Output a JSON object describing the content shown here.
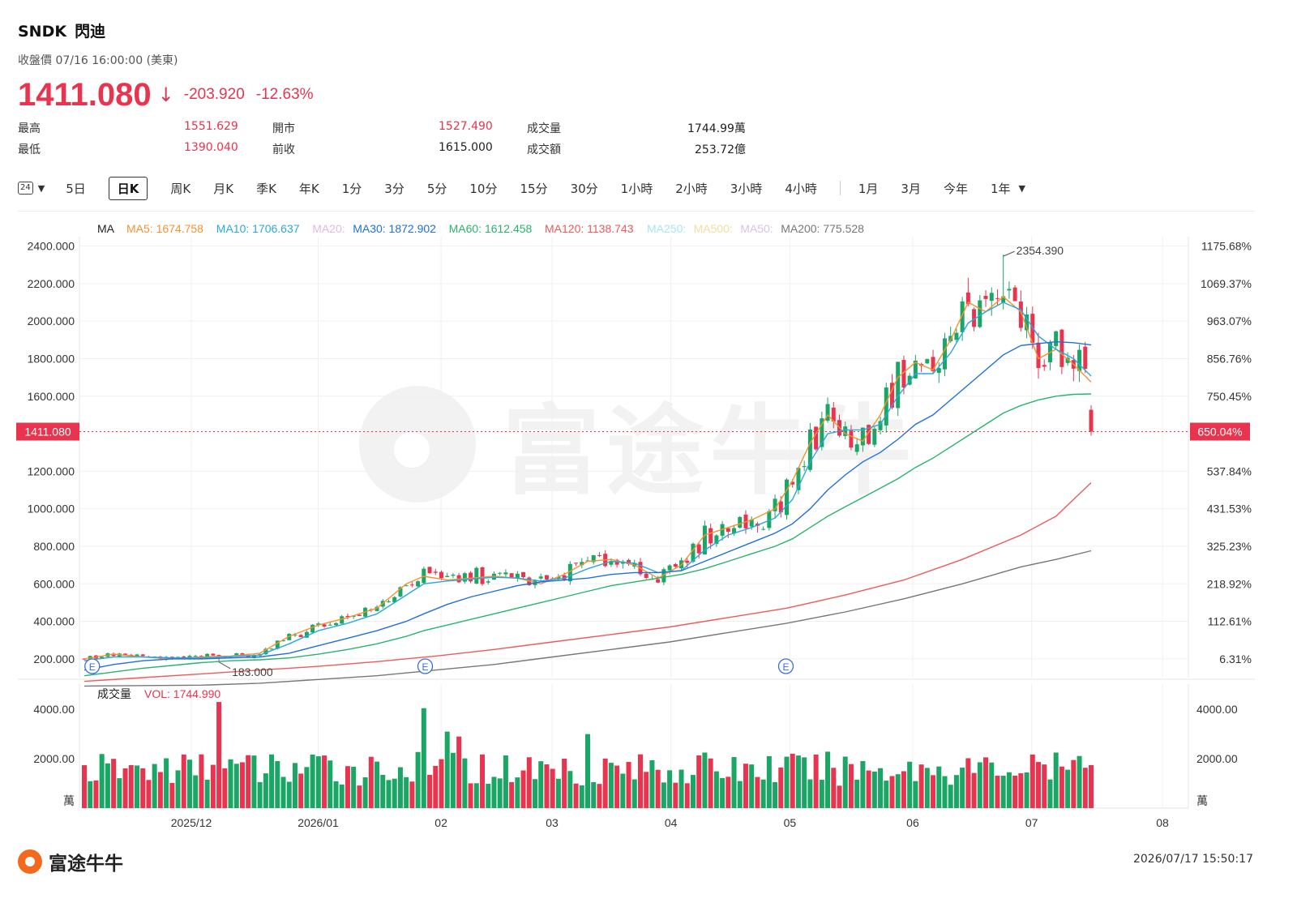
{
  "header": {
    "ticker": "SNDK",
    "name": "閃迪",
    "close_label": "收盤價 07/16 16:00:00 (美東)",
    "last_price": "1411.080",
    "change": "-203.920",
    "change_pct": "-12.63%"
  },
  "stats": {
    "high_label": "最高",
    "high": "1551.629",
    "low_label": "最低",
    "low": "1390.040",
    "open_label": "開市",
    "open": "1527.490",
    "prev_label": "前收",
    "prev": "1615.000",
    "vol_label": "成交量",
    "vol": "1744.99萬",
    "amt_label": "成交額",
    "amt": "253.72億"
  },
  "tabs": {
    "cal_icon": "24",
    "items": [
      "5日",
      "日K",
      "周K",
      "月K",
      "季K",
      "年K",
      "1分",
      "3分",
      "5分",
      "10分",
      "15分",
      "30分",
      "1小時",
      "2小時",
      "3小時",
      "4小時"
    ],
    "active": "日K",
    "ranges": [
      "1月",
      "3月",
      "今年",
      "1年"
    ]
  },
  "ma_legend": {
    "label": "MA",
    "items": [
      {
        "text": "MA5: 1674.758",
        "color": "#f5922f",
        "faded": false
      },
      {
        "text": "MA10: 1706.637",
        "color": "#2ba8dd",
        "faded": false
      },
      {
        "text": "MA20:",
        "color": "#e2b7e8",
        "faded": true
      },
      {
        "text": "MA30: 1872.902",
        "color": "#1f6fe0",
        "faded": false
      },
      {
        "text": "MA60: 1612.458",
        "color": "#27b56d",
        "faded": false
      },
      {
        "text": "MA120: 1138.743",
        "color": "#ef5a5a",
        "faded": false
      },
      {
        "text": "MA250:",
        "color": "#a8e6ef",
        "faded": true
      },
      {
        "text": "MA500:",
        "color": "#f7dca0",
        "faded": true
      },
      {
        "text": "MA50:",
        "color": "#d9c2ee",
        "faded": true
      },
      {
        "text": "MA200: 775.528",
        "color": "#777777",
        "faded": false
      }
    ]
  },
  "colors": {
    "up": "#1aa664",
    "down": "#e8344e",
    "watermark": "#f2f2f2"
  },
  "watermark": "富途牛牛",
  "footer": {
    "brand": "富途牛牛",
    "timestamp": "2026/07/17 15:50:17"
  },
  "chart_data": {
    "type": "candlestick",
    "price_axis": {
      "ylim": [
        100,
        2450
      ],
      "ticks": [
        "2400.000",
        "2200.000",
        "2000.000",
        "1800.000",
        "1600.000",
        "1200.000",
        "1000.000",
        "800.000",
        "600.000",
        "400.000",
        "200.000"
      ],
      "tick_values": [
        2400,
        2200,
        2000,
        1800,
        1600,
        1200,
        1000,
        800,
        600,
        400,
        200
      ]
    },
    "pct_axis": {
      "ticks": [
        "1175.68%",
        "1069.37%",
        "963.07%",
        "856.76%",
        "750.45%",
        "537.84%",
        "431.53%",
        "325.23%",
        "218.92%",
        "112.61%",
        "6.31%"
      ]
    },
    "current_price": 1411.08,
    "current_price_label": "1411.080",
    "current_pct_label": "650.04%",
    "high_annotation": {
      "value": 2354.39,
      "label": "2354.390"
    },
    "low_annotation": {
      "value": 183.0,
      "label": "183.000"
    },
    "earnings_markers": {
      "label": "E",
      "dates": [
        "2025-11-06",
        "2026-01-29",
        "2026-04-30"
      ]
    },
    "x_axis": {
      "labels": [
        {
          "label": "2025/12",
          "date": "2025-12-01"
        },
        {
          "label": "2026/01",
          "date": "2026-01-02"
        },
        {
          "label": "02",
          "date": "2026-02-02"
        },
        {
          "label": "03",
          "date": "2026-03-02"
        },
        {
          "label": "04",
          "date": "2026-04-01"
        },
        {
          "label": "05",
          "date": "2026-05-01"
        },
        {
          "label": "06",
          "date": "2026-06-01"
        },
        {
          "label": "07",
          "date": "2026-07-01"
        },
        {
          "label": "08",
          "date": "2026-08-03"
        }
      ]
    },
    "volume": {
      "label": "成交量",
      "current_label": "VOL: 1744.990",
      "unit": "萬",
      "ticks": [
        "4000.00",
        "2000.00"
      ],
      "tick_values": [
        4000,
        2000
      ],
      "ylim": [
        0,
        4500
      ]
    },
    "ma_lines": [
      {
        "name": "MA5",
        "color": "#f5922f",
        "points": [
          [
            0,
            200
          ],
          [
            5,
            225
          ],
          [
            10,
            210
          ],
          [
            15,
            200
          ],
          [
            20,
            210
          ],
          [
            25,
            215
          ],
          [
            30,
            230
          ],
          [
            35,
            320
          ],
          [
            40,
            380
          ],
          [
            45,
            420
          ],
          [
            50,
            470
          ],
          [
            55,
            600
          ],
          [
            58,
            640
          ],
          [
            62,
            620
          ],
          [
            66,
            630
          ],
          [
            70,
            640
          ],
          [
            74,
            630
          ],
          [
            78,
            600
          ],
          [
            82,
            650
          ],
          [
            86,
            720
          ],
          [
            90,
            730
          ],
          [
            94,
            700
          ],
          [
            98,
            630
          ],
          [
            102,
            700
          ],
          [
            106,
            860
          ],
          [
            110,
            900
          ],
          [
            114,
            940
          ],
          [
            118,
            1000
          ],
          [
            121,
            1150
          ],
          [
            124,
            1350
          ],
          [
            127,
            1500
          ],
          [
            130,
            1400
          ],
          [
            133,
            1360
          ],
          [
            136,
            1500
          ],
          [
            139,
            1700
          ],
          [
            142,
            1780
          ],
          [
            145,
            1740
          ],
          [
            148,
            1900
          ],
          [
            151,
            2100
          ],
          [
            154,
            2050
          ],
          [
            157,
            2130
          ],
          [
            160,
            2050
          ],
          [
            163,
            1800
          ],
          [
            166,
            1850
          ],
          [
            169,
            1770
          ],
          [
            172,
            1675
          ]
        ]
      },
      {
        "name": "MA10",
        "color": "#2ba8dd",
        "points": [
          [
            0,
            190
          ],
          [
            5,
            210
          ],
          [
            10,
            210
          ],
          [
            15,
            205
          ],
          [
            20,
            205
          ],
          [
            25,
            212
          ],
          [
            30,
            220
          ],
          [
            35,
            280
          ],
          [
            40,
            350
          ],
          [
            45,
            390
          ],
          [
            50,
            440
          ],
          [
            55,
            540
          ],
          [
            58,
            600
          ],
          [
            62,
            615
          ],
          [
            66,
            625
          ],
          [
            70,
            635
          ],
          [
            74,
            630
          ],
          [
            78,
            615
          ],
          [
            82,
            630
          ],
          [
            86,
            680
          ],
          [
            90,
            720
          ],
          [
            94,
            710
          ],
          [
            98,
            660
          ],
          [
            102,
            670
          ],
          [
            106,
            780
          ],
          [
            110,
            860
          ],
          [
            114,
            900
          ],
          [
            118,
            950
          ],
          [
            121,
            1050
          ],
          [
            124,
            1250
          ],
          [
            127,
            1400
          ],
          [
            130,
            1420
          ],
          [
            133,
            1420
          ],
          [
            136,
            1450
          ],
          [
            139,
            1600
          ],
          [
            142,
            1720
          ],
          [
            145,
            1720
          ],
          [
            148,
            1830
          ],
          [
            151,
            1990
          ],
          [
            154,
            2050
          ],
          [
            157,
            2100
          ],
          [
            160,
            2060
          ],
          [
            163,
            1920
          ],
          [
            166,
            1850
          ],
          [
            169,
            1800
          ],
          [
            172,
            1707
          ]
        ]
      },
      {
        "name": "MA30",
        "color": "#1f6fe0",
        "points": [
          [
            0,
            140
          ],
          [
            5,
            170
          ],
          [
            10,
            190
          ],
          [
            15,
            200
          ],
          [
            20,
            200
          ],
          [
            25,
            205
          ],
          [
            30,
            210
          ],
          [
            35,
            230
          ],
          [
            40,
            270
          ],
          [
            45,
            310
          ],
          [
            50,
            350
          ],
          [
            55,
            400
          ],
          [
            58,
            440
          ],
          [
            62,
            490
          ],
          [
            66,
            530
          ],
          [
            70,
            560
          ],
          [
            74,
            590
          ],
          [
            78,
            610
          ],
          [
            82,
            620
          ],
          [
            86,
            630
          ],
          [
            90,
            650
          ],
          [
            94,
            660
          ],
          [
            98,
            660
          ],
          [
            102,
            670
          ],
          [
            106,
            720
          ],
          [
            110,
            770
          ],
          [
            114,
            820
          ],
          [
            118,
            870
          ],
          [
            121,
            920
          ],
          [
            124,
            1000
          ],
          [
            127,
            1100
          ],
          [
            130,
            1180
          ],
          [
            133,
            1250
          ],
          [
            136,
            1300
          ],
          [
            139,
            1370
          ],
          [
            142,
            1450
          ],
          [
            145,
            1500
          ],
          [
            148,
            1580
          ],
          [
            151,
            1660
          ],
          [
            154,
            1740
          ],
          [
            157,
            1820
          ],
          [
            160,
            1870
          ],
          [
            163,
            1880
          ],
          [
            166,
            1890
          ],
          [
            169,
            1885
          ],
          [
            172,
            1873
          ]
        ]
      },
      {
        "name": "MA60",
        "color": "#27b56d",
        "points": [
          [
            0,
            110
          ],
          [
            5,
            130
          ],
          [
            10,
            150
          ],
          [
            15,
            165
          ],
          [
            20,
            180
          ],
          [
            25,
            190
          ],
          [
            30,
            195
          ],
          [
            35,
            205
          ],
          [
            40,
            225
          ],
          [
            45,
            250
          ],
          [
            50,
            280
          ],
          [
            55,
            320
          ],
          [
            58,
            350
          ],
          [
            62,
            380
          ],
          [
            66,
            410
          ],
          [
            70,
            440
          ],
          [
            74,
            470
          ],
          [
            78,
            500
          ],
          [
            82,
            530
          ],
          [
            86,
            560
          ],
          [
            90,
            590
          ],
          [
            94,
            610
          ],
          [
            98,
            630
          ],
          [
            102,
            650
          ],
          [
            106,
            680
          ],
          [
            110,
            720
          ],
          [
            114,
            760
          ],
          [
            118,
            800
          ],
          [
            121,
            840
          ],
          [
            124,
            900
          ],
          [
            127,
            960
          ],
          [
            130,
            1010
          ],
          [
            133,
            1060
          ],
          [
            136,
            1110
          ],
          [
            139,
            1160
          ],
          [
            142,
            1220
          ],
          [
            145,
            1270
          ],
          [
            148,
            1330
          ],
          [
            151,
            1390
          ],
          [
            154,
            1450
          ],
          [
            157,
            1510
          ],
          [
            160,
            1550
          ],
          [
            163,
            1580
          ],
          [
            166,
            1600
          ],
          [
            169,
            1610
          ],
          [
            172,
            1612
          ]
        ]
      },
      {
        "name": "MA120",
        "color": "#ef5a5a",
        "points": [
          [
            0,
            80
          ],
          [
            10,
            100
          ],
          [
            20,
            120
          ],
          [
            30,
            140
          ],
          [
            40,
            160
          ],
          [
            50,
            185
          ],
          [
            60,
            215
          ],
          [
            70,
            250
          ],
          [
            80,
            290
          ],
          [
            90,
            330
          ],
          [
            100,
            370
          ],
          [
            110,
            420
          ],
          [
            120,
            470
          ],
          [
            130,
            540
          ],
          [
            140,
            620
          ],
          [
            150,
            730
          ],
          [
            160,
            860
          ],
          [
            166,
            960
          ],
          [
            172,
            1139
          ]
        ]
      },
      {
        "name": "MA200",
        "color": "#777777",
        "points": [
          [
            0,
            55
          ],
          [
            20,
            60
          ],
          [
            30,
            70
          ],
          [
            40,
            90
          ],
          [
            50,
            110
          ],
          [
            60,
            140
          ],
          [
            70,
            170
          ],
          [
            80,
            210
          ],
          [
            90,
            250
          ],
          [
            100,
            290
          ],
          [
            110,
            340
          ],
          [
            120,
            390
          ],
          [
            130,
            450
          ],
          [
            140,
            520
          ],
          [
            150,
            600
          ],
          [
            160,
            690
          ],
          [
            166,
            730
          ],
          [
            172,
            776
          ]
        ]
      }
    ]
  }
}
